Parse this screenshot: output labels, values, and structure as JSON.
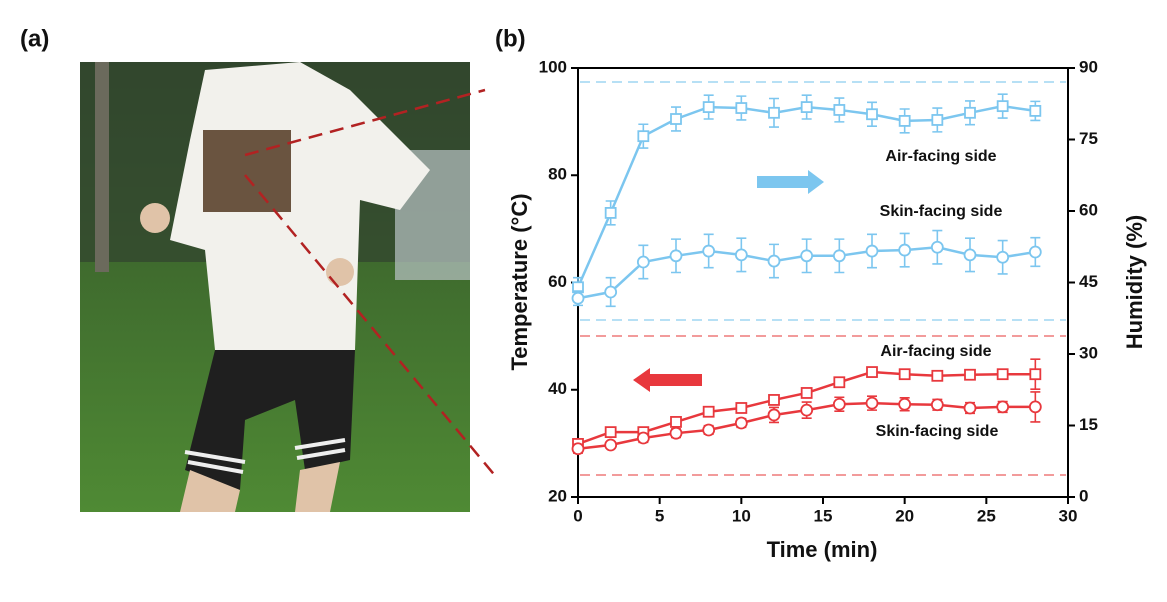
{
  "panel_labels": [
    "(a)",
    "(b)"
  ],
  "chart_data": {
    "type": "line",
    "x_label": "Time (min)",
    "y_label": "Temperature (°C)",
    "y2_label": "Humidity (%)",
    "x": [
      0,
      2,
      4,
      6,
      8,
      10,
      12,
      14,
      16,
      18,
      20,
      22,
      24,
      26,
      28
    ],
    "xlim": [
      0,
      30
    ],
    "xticks": [
      0,
      5,
      10,
      15,
      20,
      25,
      30
    ],
    "ylim": [
      20,
      100
    ],
    "yticks": [
      20,
      40,
      60,
      80,
      100
    ],
    "y2lim": [
      0,
      90
    ],
    "y2ticks": [
      0,
      15,
      30,
      45,
      60,
      75,
      90
    ],
    "series": [
      {
        "name": "Air-facing side",
        "axis": "y2",
        "marker": "square",
        "color": "#7cc6ef",
        "values": [
          44,
          59.6,
          75.7,
          79.3,
          81.8,
          81.6,
          80.6,
          81.8,
          81.2,
          80.3,
          78.9,
          79.1,
          80.6,
          82.0,
          81.0
        ],
        "errors": [
          2,
          2.5,
          2.5,
          2.5,
          2.5,
          2.5,
          3,
          2.5,
          2.5,
          2.5,
          2.5,
          2.5,
          2.5,
          2.5,
          2
        ]
      },
      {
        "name": "Skin-facing side",
        "axis": "y2",
        "marker": "circle",
        "color": "#7cc6ef",
        "values": [
          41.7,
          43.0,
          49.3,
          50.6,
          51.6,
          50.8,
          49.5,
          50.6,
          50.6,
          51.6,
          51.8,
          52.4,
          50.8,
          50.3,
          51.4
        ],
        "errors": [
          1.5,
          3,
          3.5,
          3.5,
          3.5,
          3.5,
          3.5,
          3.5,
          3.5,
          3.5,
          3.5,
          3.5,
          3.5,
          3.5,
          3
        ]
      },
      {
        "name": "Air-facing side",
        "axis": "y",
        "marker": "square",
        "color": "#e8383d",
        "values": [
          29.9,
          32.1,
          32.1,
          34.0,
          35.9,
          36.6,
          38.1,
          39.4,
          41.4,
          43.3,
          42.9,
          42.6,
          42.8,
          42.9,
          42.9
        ],
        "errors": [
          0.5,
          0.6,
          0.6,
          0.6,
          0.6,
          0.6,
          0.7,
          0.7,
          0.6,
          0.6,
          0.6,
          0.6,
          0.6,
          0.6,
          2.8
        ]
      },
      {
        "name": "Skin-facing side",
        "axis": "y",
        "marker": "circle",
        "color": "#e8383d",
        "values": [
          29.0,
          29.7,
          31.0,
          31.9,
          32.5,
          33.8,
          35.3,
          36.2,
          37.3,
          37.5,
          37.3,
          37.2,
          36.6,
          36.8,
          36.8
        ],
        "errors": [
          0.8,
          0.6,
          0.8,
          0.8,
          0.8,
          0.8,
          1.4,
          1.5,
          1.3,
          1.3,
          1.2,
          1.0,
          1.0,
          1.0,
          2.8
        ]
      }
    ]
  }
}
